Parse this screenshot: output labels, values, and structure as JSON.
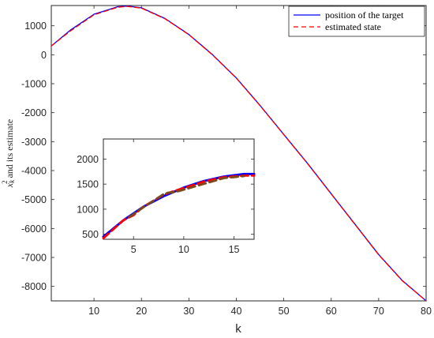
{
  "chart_data": [
    {
      "type": "line",
      "xlabel": "k",
      "ylabel": "x_k^2 and its estimate",
      "ylabel_main": "x",
      "ylabel_sub": "k",
      "ylabel_sup": "2",
      "ylabel_rest": " and its estimate",
      "xlim": [
        1,
        80
      ],
      "ylim": [
        -8500,
        1700
      ],
      "xticks": [
        10,
        20,
        30,
        40,
        50,
        60,
        70,
        80
      ],
      "yticks": [
        1000,
        0,
        -1000,
        -2000,
        -3000,
        -4000,
        -5000,
        -6000,
        -7000,
        -8000
      ],
      "legend_position": "top-right",
      "series": [
        {
          "name": "position of the target",
          "color": "#0000ff",
          "style": "solid",
          "x": [
            1,
            5,
            10,
            15,
            17,
            20,
            25,
            30,
            35,
            40,
            45,
            50,
            55,
            60,
            65,
            70,
            75,
            80
          ],
          "values": [
            300,
            850,
            1400,
            1660,
            1680,
            1620,
            1250,
            700,
            0,
            -800,
            -1750,
            -2750,
            -3750,
            -4800,
            -5850,
            -6900,
            -7800,
            -8500
          ]
        },
        {
          "name": "estimated state",
          "color": "#ff0000",
          "style": "dashed",
          "x": [
            1,
            5,
            10,
            15,
            17,
            20,
            25,
            30,
            35,
            40,
            45,
            50,
            55,
            60,
            65,
            70,
            75,
            80
          ],
          "values": [
            300,
            820,
            1380,
            1640,
            1670,
            1610,
            1240,
            690,
            -10,
            -810,
            -1760,
            -2760,
            -3760,
            -4810,
            -5860,
            -6910,
            -7810,
            -8500
          ]
        }
      ]
    },
    {
      "type": "line",
      "xlim": [
        2,
        17
      ],
      "ylim": [
        400,
        2400
      ],
      "xticks": [
        5,
        10,
        15
      ],
      "yticks": [
        2000,
        1500,
        1000,
        500
      ],
      "series": [
        {
          "name": "",
          "color": "#0000ff",
          "x": [
            2,
            4,
            6,
            8,
            10,
            12,
            14,
            16,
            17
          ],
          "values": [
            450,
            780,
            1050,
            1260,
            1430,
            1560,
            1650,
            1700,
            1700
          ]
        },
        {
          "name": "",
          "color": "#ff0000",
          "x": [
            2,
            4,
            5,
            6,
            8,
            9,
            10,
            12,
            14,
            16,
            17
          ],
          "values": [
            420,
            780,
            880,
            1050,
            1290,
            1360,
            1420,
            1550,
            1640,
            1670,
            1670
          ]
        },
        {
          "name": "",
          "color": "#7a4a1a",
          "x": [
            4.6,
            5,
            5.4,
            8,
            8.5,
            9,
            9.5,
            14,
            15,
            16
          ],
          "values": [
            850,
            900,
            960,
            1300,
            1330,
            1340,
            1360,
            1620,
            1640,
            1660
          ]
        }
      ]
    }
  ]
}
